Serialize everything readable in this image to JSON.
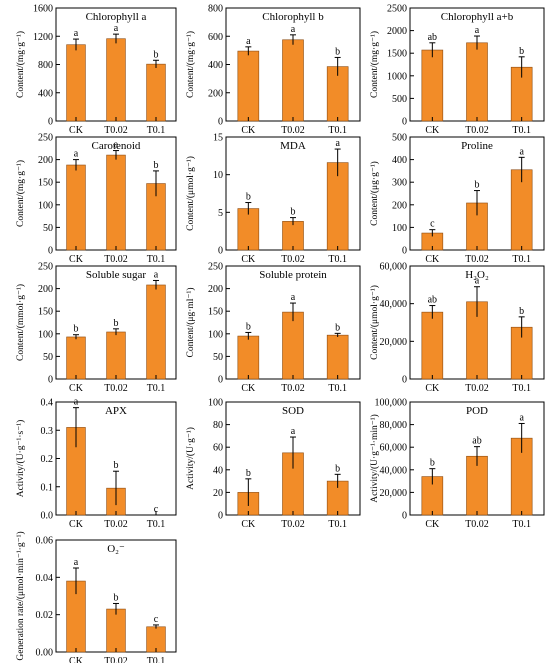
{
  "chart_data": [
    {
      "type": "bar",
      "title": "Chlorophyll a",
      "ylabel": "Content/(mg·g⁻¹)",
      "categories": [
        "CK",
        "T0.02",
        "T0.1"
      ],
      "values": [
        1080,
        1165,
        805
      ],
      "errors": [
        80,
        65,
        55
      ],
      "letters": [
        "a",
        "a",
        "b"
      ],
      "ylim": [
        0,
        1600
      ],
      "yticks": [
        0,
        400,
        800,
        1200,
        1600
      ],
      "ytick_labels": [
        "0",
        "400",
        "800",
        "1200",
        "1600"
      ]
    },
    {
      "type": "bar",
      "title": "Chlorophyll b",
      "ylabel": "Content/(mg·g⁻¹)",
      "categories": [
        "CK",
        "T0.02",
        "T0.1"
      ],
      "values": [
        495,
        575,
        385
      ],
      "errors": [
        30,
        35,
        65
      ],
      "letters": [
        "a",
        "a",
        "b"
      ],
      "ylim": [
        0,
        800
      ],
      "yticks": [
        0,
        200,
        400,
        600,
        800
      ],
      "ytick_labels": [
        "0",
        "200",
        "400",
        "600",
        "800"
      ]
    },
    {
      "type": "bar",
      "title": "Chlorophyll a+b",
      "ylabel": "Content/(mg·g⁻¹)",
      "categories": [
        "CK",
        "T0.02",
        "T0.1"
      ],
      "values": [
        1570,
        1730,
        1190
      ],
      "errors": [
        160,
        150,
        230
      ],
      "letters": [
        "ab",
        "a",
        "b"
      ],
      "ylim": [
        0,
        2500
      ],
      "yticks": [
        0,
        500,
        1000,
        1500,
        2000,
        2500
      ],
      "ytick_labels": [
        "0",
        "500",
        "1000",
        "1500",
        "2000",
        "2500"
      ]
    },
    {
      "type": "bar",
      "title": "Carotenoid",
      "ylabel": "Content/(mg·g⁻¹)",
      "categories": [
        "CK",
        "T0.02",
        "T0.1"
      ],
      "values": [
        188,
        210,
        147
      ],
      "errors": [
        12,
        10,
        28
      ],
      "letters": [
        "a",
        "a",
        "b"
      ],
      "ylim": [
        0,
        250
      ],
      "yticks": [
        0,
        50,
        100,
        150,
        200,
        250
      ],
      "ytick_labels": [
        "0",
        "50",
        "100",
        "150",
        "200",
        "250"
      ]
    },
    {
      "type": "bar",
      "title": "MDA",
      "ylabel": "Content/(μmol·g⁻¹)",
      "categories": [
        "CK",
        "T0.02",
        "T0.1"
      ],
      "values": [
        5.5,
        3.8,
        11.6
      ],
      "errors": [
        0.8,
        0.5,
        1.8
      ],
      "letters": [
        "b",
        "b",
        "a"
      ],
      "ylim": [
        0,
        15
      ],
      "yticks": [
        0,
        5,
        10,
        15
      ],
      "ytick_labels": [
        "0",
        "5",
        "10",
        "15"
      ]
    },
    {
      "type": "bar",
      "title": "Proline",
      "ylabel": "Content/(μg·g⁻¹)",
      "categories": [
        "CK",
        "T0.02",
        "T0.1"
      ],
      "values": [
        75,
        208,
        355
      ],
      "errors": [
        15,
        55,
        55
      ],
      "letters": [
        "c",
        "b",
        "a"
      ],
      "ylim": [
        0,
        500
      ],
      "yticks": [
        0,
        100,
        200,
        300,
        400,
        500
      ],
      "ytick_labels": [
        "0",
        "100",
        "200",
        "300",
        "400",
        "500"
      ]
    },
    {
      "type": "bar",
      "title": "Soluble sugar",
      "ylabel": "Content/(mmol·g⁻¹)",
      "categories": [
        "CK",
        "T0.02",
        "T0.1"
      ],
      "values": [
        93,
        104,
        208
      ],
      "errors": [
        5,
        7,
        10
      ],
      "letters": [
        "b",
        "b",
        "a"
      ],
      "ylim": [
        0,
        250
      ],
      "yticks": [
        0,
        50,
        100,
        150,
        200,
        250
      ],
      "ytick_labels": [
        "0",
        "50",
        "100",
        "150",
        "200",
        "250"
      ]
    },
    {
      "type": "bar",
      "title": "Soluble protein",
      "ylabel": "Content/(μg·ml⁻¹)",
      "categories": [
        "CK",
        "T0.02",
        "T0.1"
      ],
      "values": [
        95,
        148,
        97
      ],
      "errors": [
        8,
        20,
        4
      ],
      "letters": [
        "b",
        "a",
        "b"
      ],
      "ylim": [
        0,
        250
      ],
      "yticks": [
        0,
        50,
        100,
        150,
        200,
        250
      ],
      "ytick_labels": [
        "0",
        "50",
        "100",
        "150",
        "200",
        "250"
      ]
    },
    {
      "type": "bar",
      "title": "H₂O₂",
      "ylabel": "Content/(μmol·g⁻¹)",
      "categories": [
        "CK",
        "T0.02",
        "T0.1"
      ],
      "values": [
        35500,
        41000,
        27500
      ],
      "errors": [
        3500,
        8000,
        5500
      ],
      "letters": [
        "ab",
        "a",
        "b"
      ],
      "ylim": [
        0,
        60000
      ],
      "yticks": [
        0,
        20000,
        40000,
        60000
      ],
      "ytick_labels": [
        "0",
        "20,000",
        "40,000",
        "60,000"
      ]
    },
    {
      "type": "bar",
      "title": "APX",
      "ylabel": "Activity/(U·g⁻¹·s⁻¹)",
      "categories": [
        "CK",
        "T0.02",
        "T0.1"
      ],
      "values": [
        0.31,
        0.095,
        0.0
      ],
      "errors": [
        0.07,
        0.06,
        0.0
      ],
      "letters": [
        "a",
        "b",
        "c"
      ],
      "ylim": [
        0,
        0.4
      ],
      "yticks": [
        0,
        0.1,
        0.2,
        0.3,
        0.4
      ],
      "ytick_labels": [
        "0.0",
        "0.1",
        "0.2",
        "0.3",
        "0.4"
      ]
    },
    {
      "type": "bar",
      "title": "SOD",
      "ylabel": "Activity/(U·g⁻¹)",
      "categories": [
        "CK",
        "T0.02",
        "T0.1"
      ],
      "values": [
        20,
        55,
        30
      ],
      "errors": [
        12,
        14,
        6
      ],
      "letters": [
        "b",
        "a",
        "b"
      ],
      "ylim": [
        0,
        100
      ],
      "yticks": [
        0,
        20,
        40,
        60,
        80,
        100
      ],
      "ytick_labels": [
        "0",
        "20",
        "40",
        "60",
        "80",
        "100"
      ]
    },
    {
      "type": "bar",
      "title": "POD",
      "ylabel": "Activity/(U·g⁻¹·min⁻¹)",
      "categories": [
        "CK",
        "T0.02",
        "T0.1"
      ],
      "values": [
        34000,
        52000,
        68000
      ],
      "errors": [
        7000,
        8500,
        13000
      ],
      "letters": [
        "b",
        "ab",
        "a"
      ],
      "ylim": [
        0,
        100000
      ],
      "yticks": [
        0,
        20000,
        40000,
        60000,
        80000,
        100000
      ],
      "ytick_labels": [
        "0",
        "20,000",
        "40,000",
        "60,000",
        "80,000",
        "100,000"
      ]
    },
    {
      "type": "bar",
      "title": "O₂⁻",
      "ylabel": "Generation rate/(μmol·min⁻¹·g⁻¹)",
      "categories": [
        "CK",
        "T0.02",
        "T0.1"
      ],
      "values": [
        0.038,
        0.023,
        0.0135
      ],
      "errors": [
        0.007,
        0.003,
        0.001
      ],
      "letters": [
        "a",
        "b",
        "c"
      ],
      "ylim": [
        0,
        0.06
      ],
      "yticks": [
        0,
        0.02,
        0.04,
        0.06
      ],
      "ytick_labels": [
        "0.00",
        "0.02",
        "0.04",
        "0.06"
      ]
    }
  ],
  "style": {
    "bar_color": "#F28C28",
    "bar_edge": "#8B4A10",
    "axis_color": "#000000"
  }
}
